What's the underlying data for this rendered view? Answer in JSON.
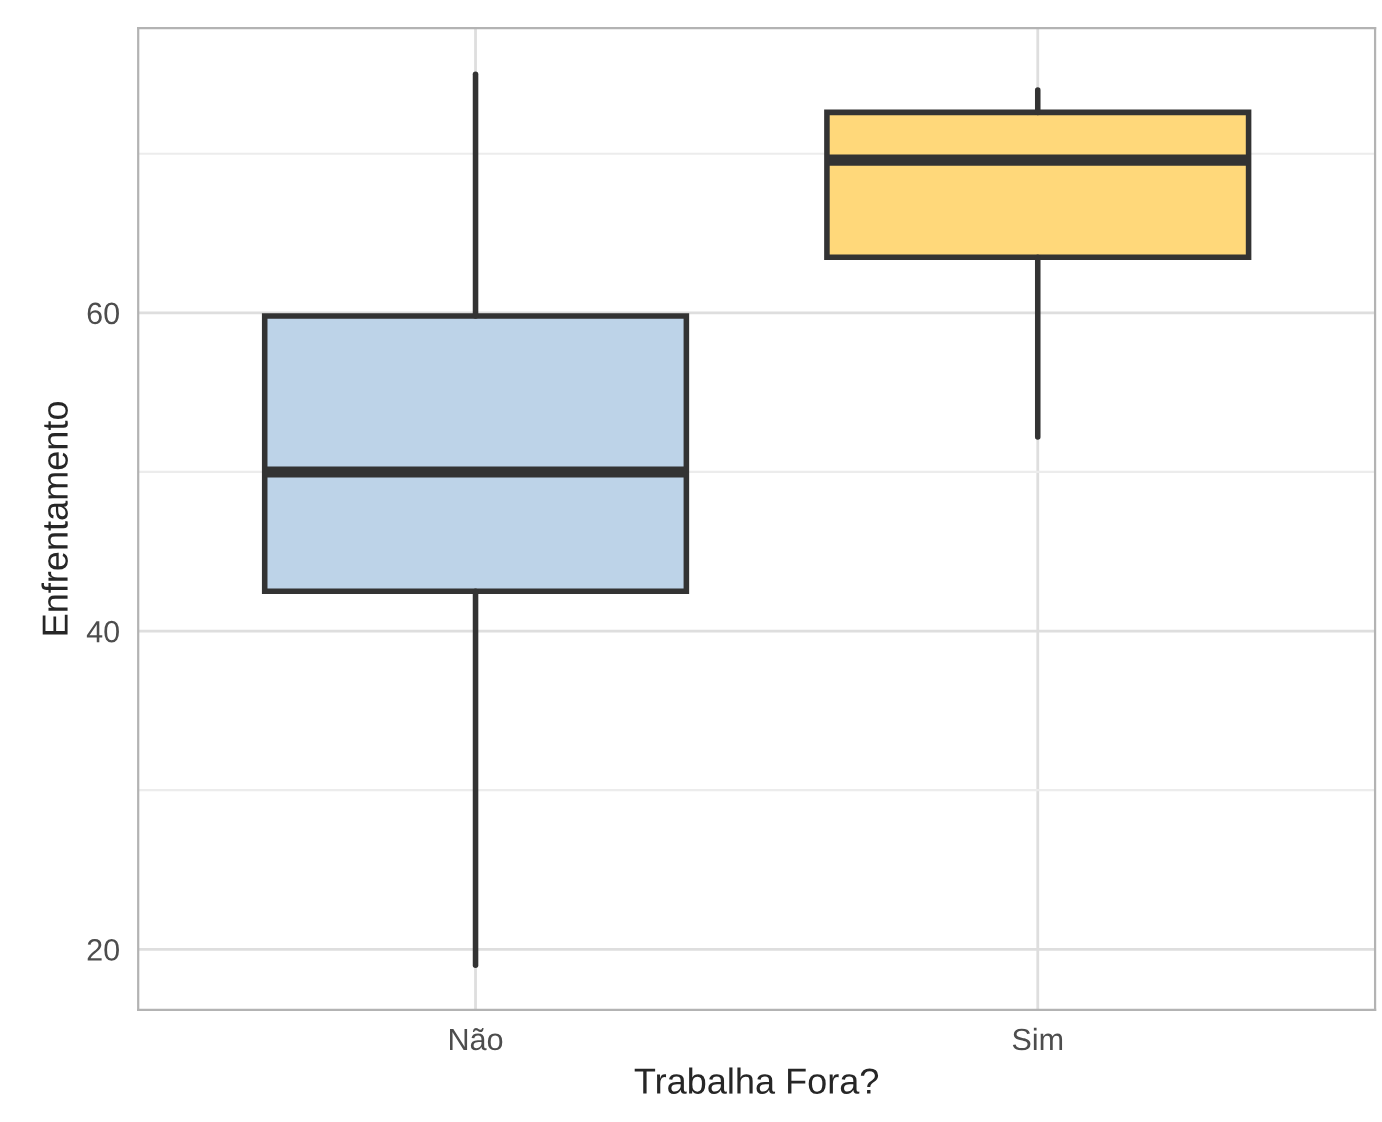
{
  "chart_data": {
    "type": "box",
    "xlabel": "Trabalha Fora?",
    "ylabel": "Enfrentamento",
    "categories": [
      "Não",
      "Sim"
    ],
    "boxes": [
      {
        "low": 19,
        "q1": 42.5,
        "median": 50,
        "q3": 59.8,
        "high": 75
      },
      {
        "low": 52.2,
        "q1": 63.5,
        "median": 69.6,
        "q3": 72.6,
        "high": 74
      }
    ],
    "colors": [
      "#bdd3e8",
      "#ffd87a"
    ],
    "ylim": [
      16.2,
      77.9
    ],
    "yticks": [
      20,
      40,
      60
    ],
    "grid": true
  }
}
